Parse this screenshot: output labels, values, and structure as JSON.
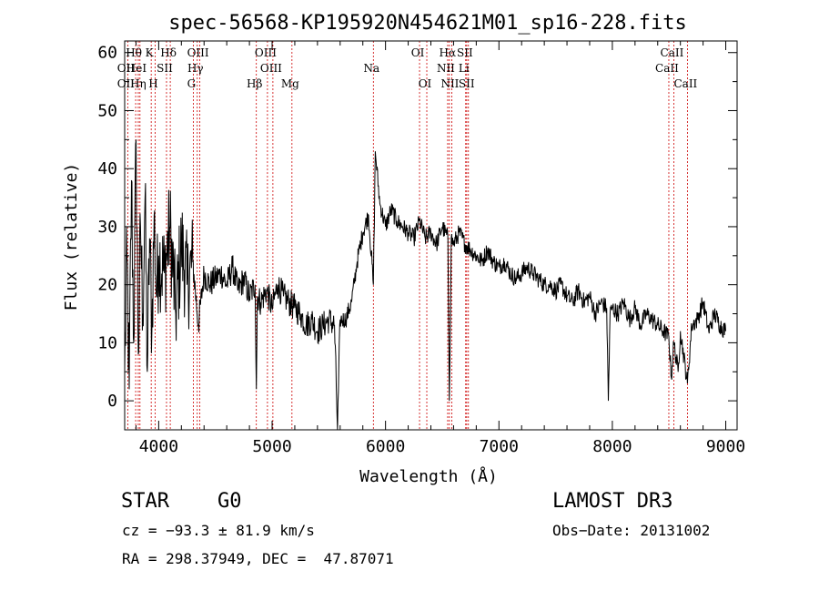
{
  "chart_data": {
    "type": "line",
    "title": "spec-56568-KP195920N454621M01_sp16-228.fits",
    "xlabel": "Wavelength (Å)",
    "ylabel": "Flux (relative)",
    "xlim": [
      3700,
      9100
    ],
    "ylim": [
      -5,
      62
    ],
    "x_ticks": [
      4000,
      5000,
      6000,
      7000,
      8000,
      9000
    ],
    "y_ticks": [
      0,
      10,
      20,
      30,
      40,
      50,
      60
    ],
    "grid": false,
    "line_color": "#000000",
    "marker_color": "#cc0000",
    "series": [
      {
        "x": [
          3700,
          3720,
          3740,
          3760,
          3780,
          3800,
          3820,
          3840,
          3860,
          3880,
          3900,
          3920,
          3940,
          3960,
          3980,
          4000,
          4050,
          4100,
          4150,
          4200,
          4250,
          4300,
          4350,
          4400,
          4450,
          4500,
          4550,
          4600,
          4650,
          4700,
          4750,
          4800,
          4850,
          4861,
          4870,
          4900,
          4950,
          5000,
          5050,
          5100,
          5150,
          5200,
          5250,
          5300,
          5350,
          5400,
          5450,
          5500,
          5550,
          5577,
          5600,
          5650,
          5700,
          5750,
          5800,
          5850,
          5893,
          5910,
          5950,
          6000,
          6050,
          6100,
          6150,
          6200,
          6250,
          6300,
          6350,
          6400,
          6450,
          6500,
          6550,
          6563,
          6580,
          6600,
          6650,
          6700,
          6750,
          6800,
          6850,
          6900,
          6950,
          7000,
          7050,
          7100,
          7150,
          7200,
          7250,
          7300,
          7350,
          7400,
          7450,
          7500,
          7550,
          7600,
          7650,
          7700,
          7750,
          7800,
          7850,
          7900,
          7950,
          7965,
          7980,
          8000,
          8050,
          8100,
          8150,
          8200,
          8250,
          8300,
          8350,
          8400,
          8450,
          8498,
          8520,
          8542,
          8580,
          8600,
          8662,
          8700,
          8750,
          8800,
          8850,
          8900,
          8950,
          9000
        ],
        "y": [
          5,
          25,
          2,
          38,
          10,
          45,
          8,
          30,
          15,
          35,
          5,
          28,
          12,
          32,
          18,
          25,
          22,
          30,
          15,
          27,
          20,
          24,
          13,
          22,
          20,
          21,
          22,
          20,
          23,
          19,
          21,
          18,
          20,
          2,
          18,
          17,
          19,
          16,
          20,
          18,
          17,
          16,
          15,
          13,
          14,
          12,
          13,
          14,
          13,
          -5,
          14,
          14,
          17,
          24,
          29,
          32,
          20,
          43,
          34,
          30,
          33,
          31,
          30,
          29,
          28,
          31,
          28,
          29,
          27,
          30,
          28,
          0,
          28,
          27,
          29,
          27,
          26,
          25,
          24,
          26,
          24,
          23,
          24,
          22,
          21,
          22,
          23,
          22,
          21,
          20,
          20,
          19,
          20,
          18,
          17,
          19,
          17,
          18,
          15,
          17,
          16,
          0,
          15,
          16,
          15,
          17,
          14,
          16,
          13,
          15,
          14,
          13,
          12,
          11,
          4,
          10,
          5,
          12,
          3,
          13,
          14,
          17,
          12,
          15,
          13,
          12
        ]
      }
    ],
    "lines": [
      {
        "name": "OII",
        "x": 3727,
        "row": 2,
        "side": "left"
      },
      {
        "name": "OII",
        "x": 3727,
        "row": 3,
        "side": "left"
      },
      {
        "name": "Hθ",
        "x": 3797,
        "row": 1,
        "side": "left"
      },
      {
        "name": "HeI",
        "x": 3820,
        "row": 2,
        "side": "left"
      },
      {
        "name": "Hη",
        "x": 3835,
        "row": 3,
        "side": "left"
      },
      {
        "name": "K",
        "x": 3934,
        "row": 1,
        "side": "left"
      },
      {
        "name": "SII",
        "x": 4069,
        "row": 2,
        "side": "left"
      },
      {
        "name": "H",
        "x": 3969,
        "row": 3,
        "side": "left"
      },
      {
        "name": "Hδ",
        "x": 4102,
        "row": 1,
        "side": "left"
      },
      {
        "name": "OIII",
        "x": 4363,
        "row": 1,
        "side": "left"
      },
      {
        "name": "Hγ",
        "x": 4340,
        "row": 2,
        "side": "left"
      },
      {
        "name": "G",
        "x": 4305,
        "row": 3,
        "side": "left"
      },
      {
        "name": "OIII",
        "x": 4959,
        "row": 1,
        "side": "left"
      },
      {
        "name": "OIII",
        "x": 5007,
        "row": 2,
        "side": "left"
      },
      {
        "name": "Hβ",
        "x": 4861,
        "row": 3,
        "side": "left"
      },
      {
        "name": "Mg",
        "x": 5175,
        "row": 3,
        "side": "left"
      },
      {
        "name": "Na",
        "x": 5893,
        "row": 2,
        "side": "left"
      },
      {
        "name": "OI",
        "x": 6300,
        "row": 1,
        "side": "left"
      },
      {
        "name": "OI",
        "x": 6364,
        "row": 3,
        "side": "left"
      },
      {
        "name": "Hα",
        "x": 6563,
        "row": 1,
        "side": "left"
      },
      {
        "name": "SII",
        "x": 6716,
        "row": 1,
        "side": "left"
      },
      {
        "name": "NII",
        "x": 6548,
        "row": 2,
        "side": "left"
      },
      {
        "name": "Li",
        "x": 6707,
        "row": 2,
        "side": "left"
      },
      {
        "name": "NII",
        "x": 6584,
        "row": 3,
        "side": "left"
      },
      {
        "name": "SII",
        "x": 6731,
        "row": 3,
        "side": "left"
      },
      {
        "name": "CaII",
        "x": 8542,
        "row": 1,
        "side": "left"
      },
      {
        "name": "CaII",
        "x": 8498,
        "row": 2,
        "side": "left"
      },
      {
        "name": "CaII",
        "x": 8662,
        "row": 3,
        "side": "left"
      }
    ]
  },
  "footer": {
    "class_label": "STAR",
    "subclass_label": "G0",
    "survey": "LAMOST DR3",
    "cz": "cz = −93.3 ± 81.9 km/s",
    "obs_date": "Obs−Date: 20131002",
    "radec": "RA = 298.37949, DEC =  47.87071"
  }
}
